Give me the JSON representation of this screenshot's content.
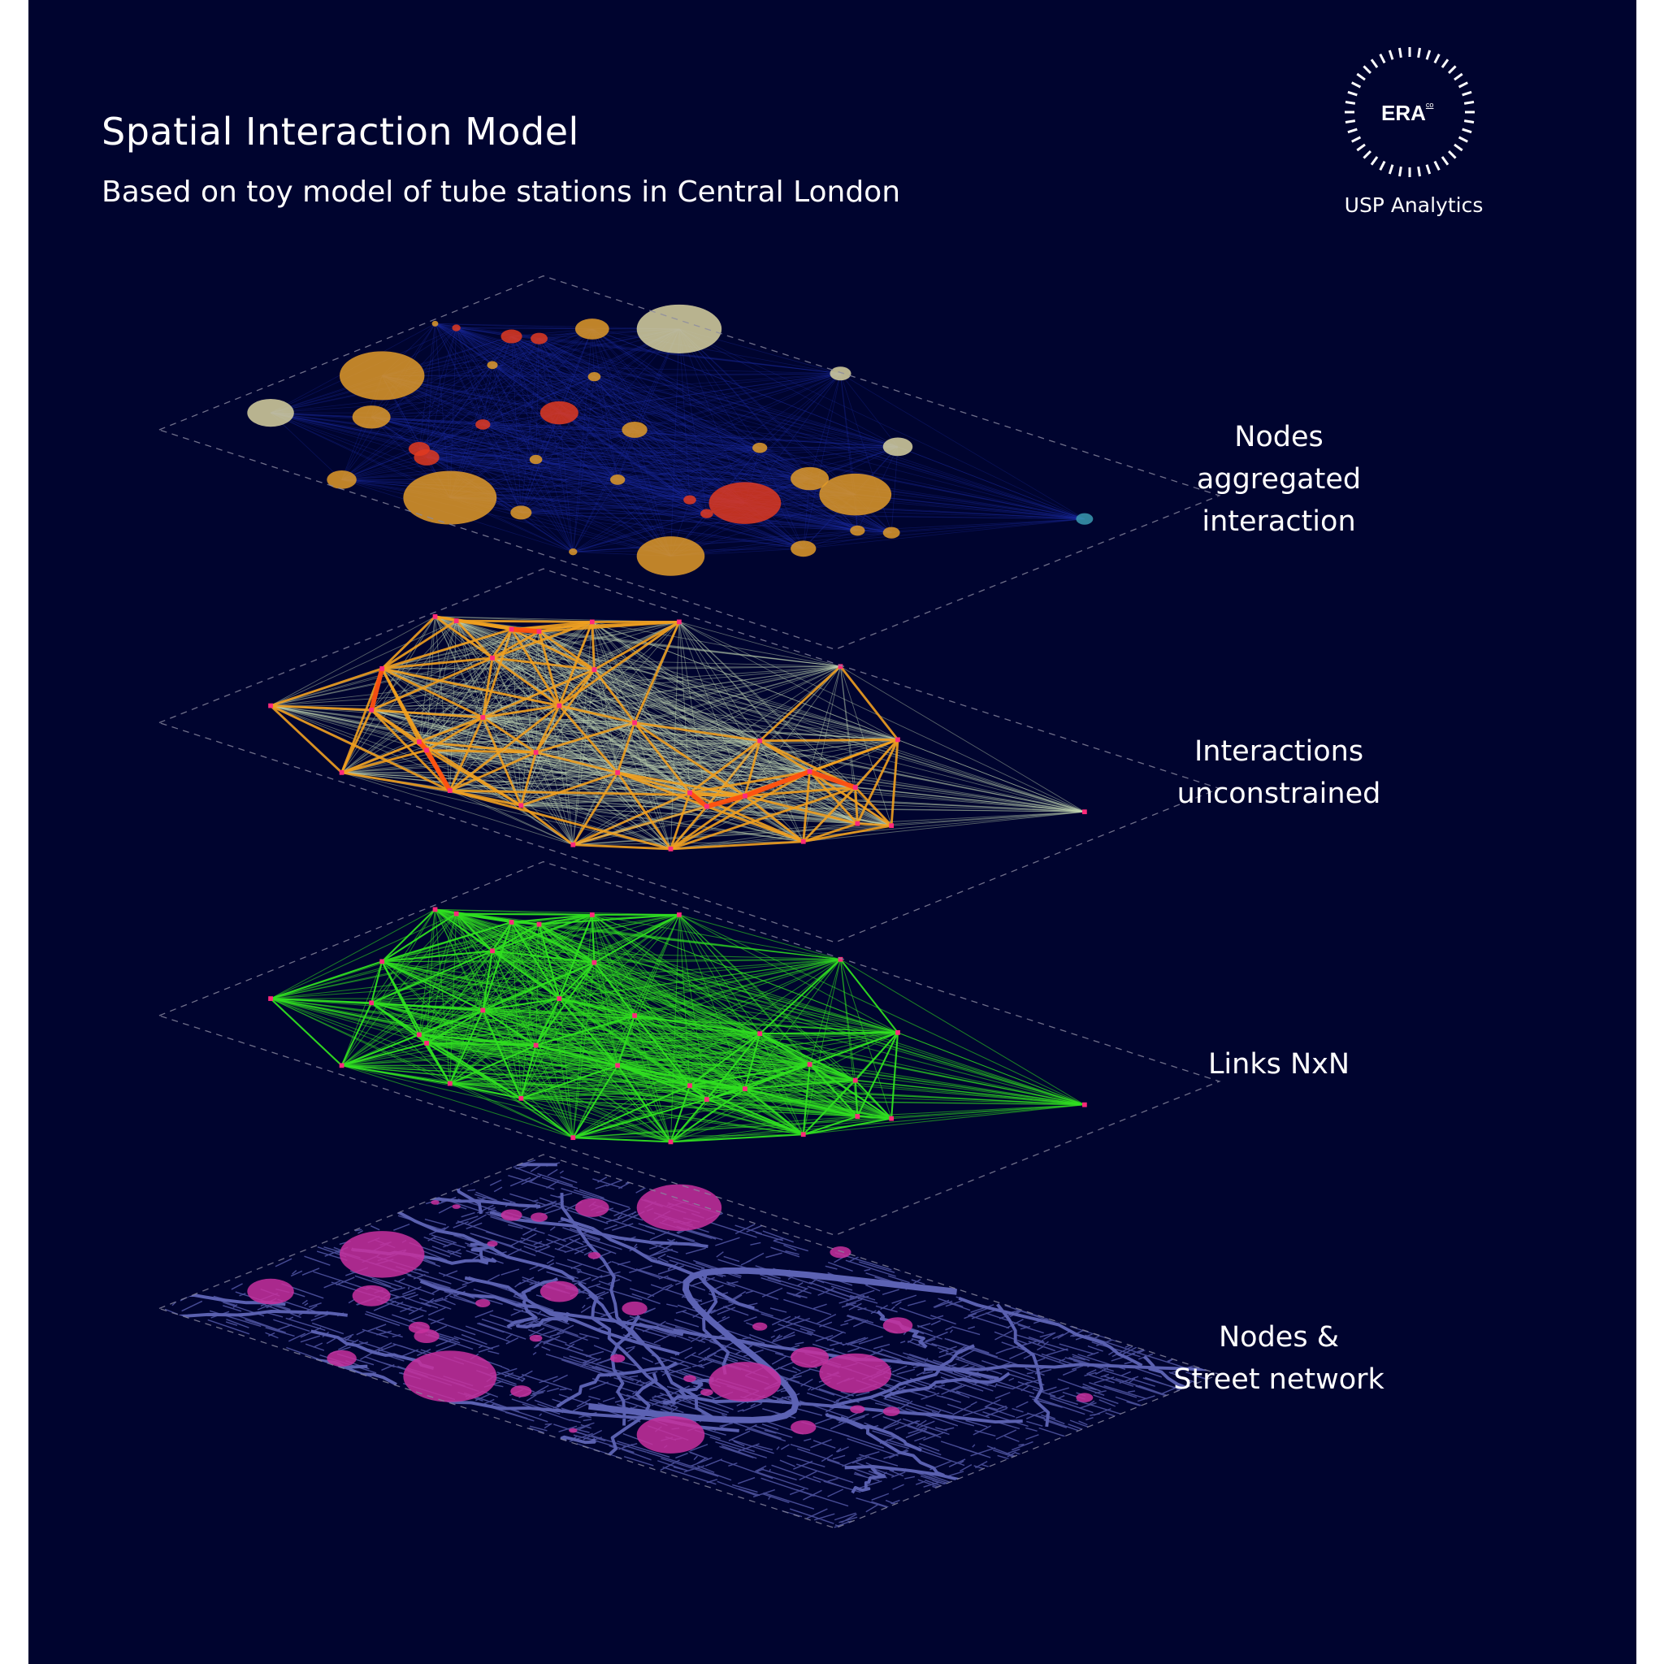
{
  "header": {
    "title": "Spatial Interaction Model",
    "subtitle": "Based on toy model of tube stations in Central London"
  },
  "logo": {
    "mark": "ERA",
    "superscript": "co",
    "caption": "USP Analytics"
  },
  "layers": [
    {
      "id": "nodes-aggregated",
      "label_lines": [
        "Nodes",
        "aggregated",
        "interaction"
      ]
    },
    {
      "id": "interactions",
      "label_lines": [
        "Interactions",
        "unconstrained"
      ]
    },
    {
      "id": "links",
      "label_lines": [
        "Links NxN"
      ]
    },
    {
      "id": "street-network",
      "label_lines": [
        "Nodes &",
        "Street network"
      ]
    }
  ],
  "colors": {
    "background": "#00042f",
    "outline": "#8a8aa0",
    "strong_interaction": "#ff5010",
    "interaction": "#f0a020",
    "weak_interaction": "#c0d4b0",
    "links": "#30e020",
    "node": "#ff2a7a",
    "street": "#4c529e",
    "map_node": "#c8309e",
    "bubble_pale": "#d8d2a0",
    "bubble_orange": "#e09a28",
    "bubble_red": "#e03a20",
    "bubble_cyan": "#3a9ab0"
  }
}
